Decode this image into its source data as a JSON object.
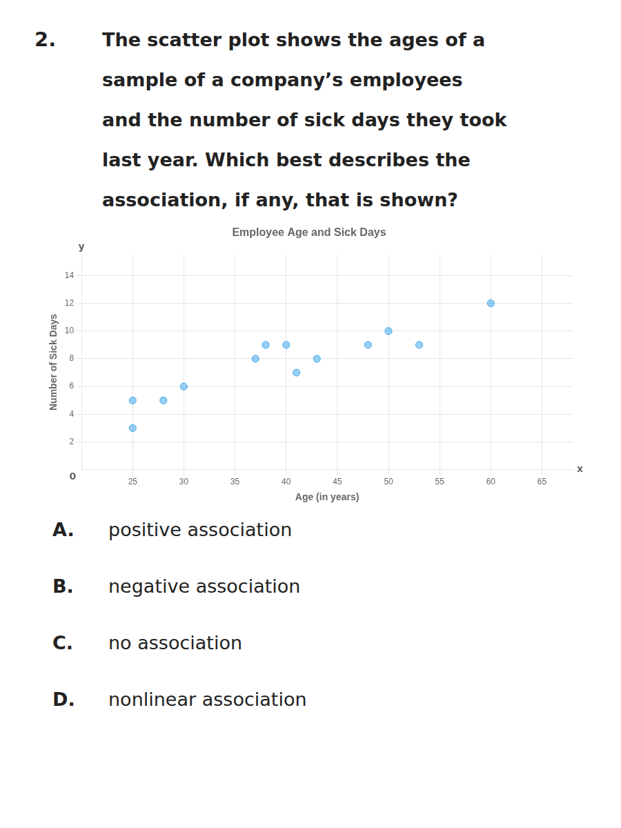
{
  "question_number": "2.",
  "question_lines": [
    "The scatter plot shows the ages of a",
    "sample of a company’s employees",
    "and the number of sick days they took",
    "last year. Which best describes the",
    "association, if any, that is shown?"
  ],
  "choices": [
    [
      "A.",
      "positive association"
    ],
    [
      "B.",
      "negative association"
    ],
    [
      "C.",
      "no association"
    ],
    [
      "D.",
      "nonlinear association"
    ]
  ],
  "chart_data": {
    "type": "scatter",
    "title": "Employee Age and Sick Days",
    "x_label": "Age (in years)",
    "y_label": "Number of Sick Days",
    "x": [
      25,
      25,
      28,
      30,
      37,
      38,
      40,
      41,
      43,
      48,
      50,
      53,
      60
    ],
    "values": [
      3,
      5,
      5,
      6,
      8,
      9,
      9,
      7,
      8,
      9,
      10,
      9,
      12
    ],
    "xlim": [
      20,
      68
    ],
    "ylim": [
      0,
      15.5
    ],
    "xticks": [
      25,
      30,
      35,
      40,
      45,
      50,
      55,
      60,
      65
    ],
    "yticks": [
      2,
      4,
      6,
      8,
      10,
      12,
      14
    ],
    "grid": true,
    "legend": false,
    "annotations": [
      {
        "text": "y",
        "x": 20,
        "y": 15.5
      },
      {
        "text": "x",
        "x": 68,
        "y": 0
      },
      {
        "text": "0",
        "x": 20,
        "y": 0
      }
    ]
  }
}
